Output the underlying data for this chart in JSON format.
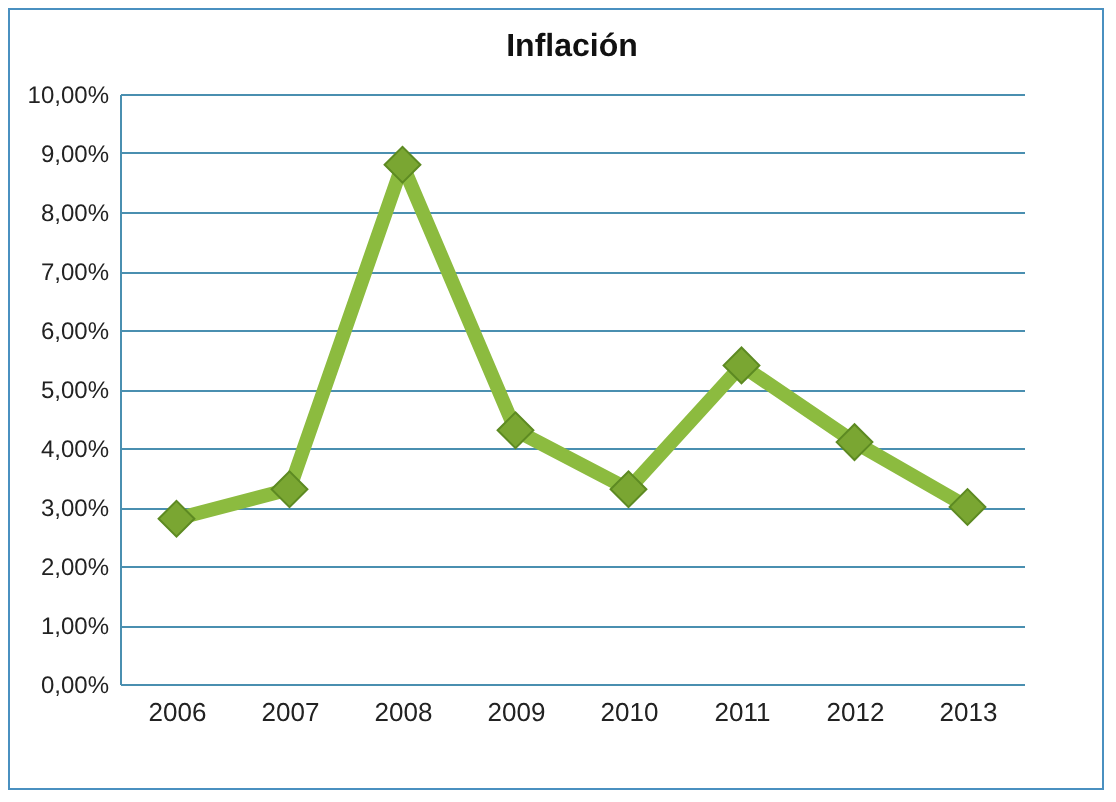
{
  "chart_data": {
    "type": "line",
    "title": "Inflación",
    "categories": [
      "2006",
      "2007",
      "2008",
      "2009",
      "2010",
      "2011",
      "2012",
      "2013"
    ],
    "series": [
      {
        "color": "#8cbb3f",
        "values": [
          2.8,
          3.3,
          8.8,
          4.3,
          3.3,
          5.4,
          4.1,
          3.0
        ]
      }
    ],
    "ylim": [
      0,
      10
    ],
    "yticks": [
      {
        "value": 0,
        "label": "0,00%"
      },
      {
        "value": 1,
        "label": "1,00%"
      },
      {
        "value": 2,
        "label": "2,00%"
      },
      {
        "value": 3,
        "label": "3,00%"
      },
      {
        "value": 4,
        "label": "4,00%"
      },
      {
        "value": 5,
        "label": "5,00%"
      },
      {
        "value": 6,
        "label": "6,00%"
      },
      {
        "value": 7,
        "label": "7,00%"
      },
      {
        "value": 8,
        "label": "8,00%"
      },
      {
        "value": 9,
        "label": "9,00%"
      },
      {
        "value": 10,
        "label": "10,00%"
      }
    ],
    "grid": "y",
    "marker": "diamond",
    "line_style": "solid"
  }
}
